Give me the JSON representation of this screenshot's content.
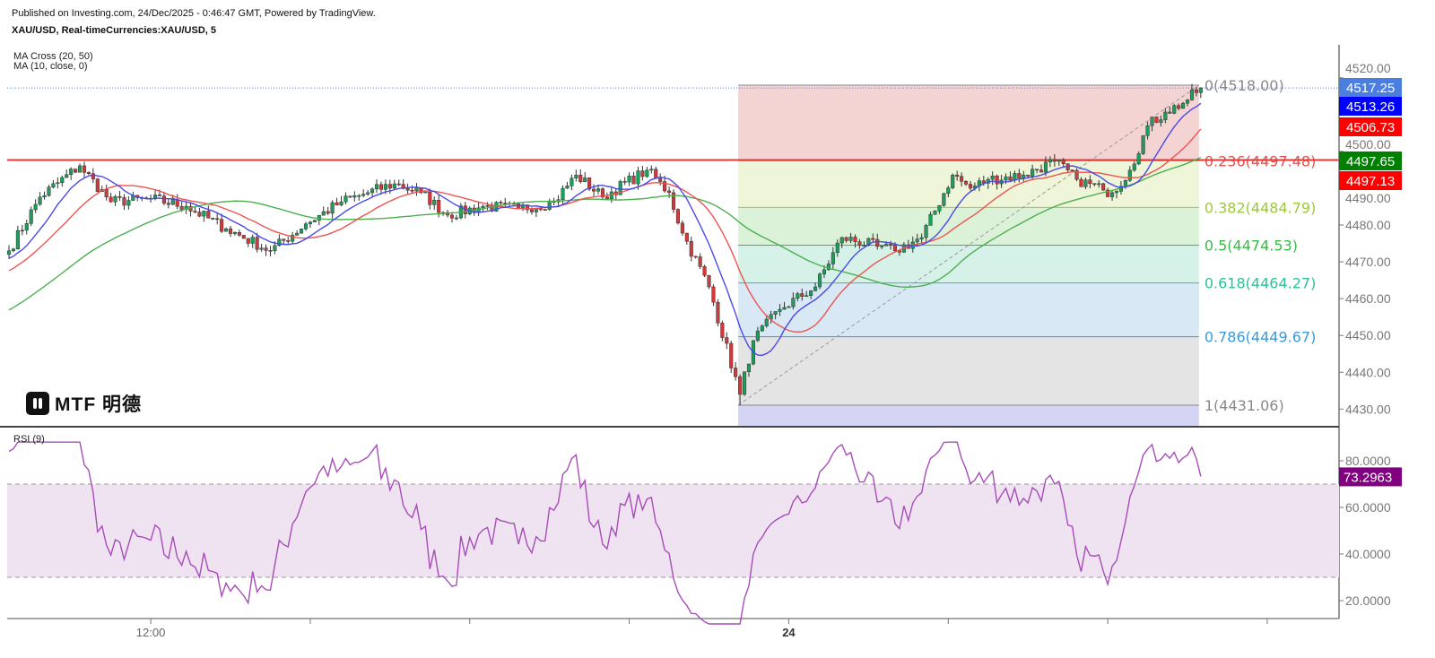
{
  "header": {
    "published": "Published on Investing.com, 24/Dec/2025 - 0:46:47 GMT, Powered by TradingView.",
    "symbol": "XAU/USD, Real-timeCurrencies:XAU/USD, 5"
  },
  "indicators": {
    "ma_cross": "MA Cross (20, 50)",
    "ma": "MA (10, close, 0)",
    "rsi": "RSI (9)"
  },
  "logo": {
    "text": "MTF 明德"
  },
  "colors": {
    "up": "#1e9e5a",
    "down": "#d23a3a",
    "ma10": "#4a4ae8",
    "ma20": "#ef5350",
    "ma50": "#4caf50",
    "rsi": "#a64db8",
    "hline": "#e53935",
    "last_price": "#4a7fe0"
  },
  "price_labels": [
    {
      "text": "4517.25",
      "color": "#4a7fe0",
      "value": 4517.25
    },
    {
      "text": "4513.26",
      "color": "#0000ff",
      "value": 4513.26
    },
    {
      "text": "4506.73",
      "color": "#ff0000",
      "value": 4506.73
    },
    {
      "text": "4497.65",
      "color": "#008000",
      "value": 4497.65
    },
    {
      "text": "4497.13",
      "color": "#ff0000",
      "value": 4497.13
    }
  ],
  "rsi_label": {
    "text": "73.2963",
    "color": "#800080",
    "value": 73.2963
  },
  "chart_data": {
    "type": "candlestick",
    "series": [
      {
        "name": "XAU/USD",
        "kind": "ohlc"
      },
      {
        "name": "MA 10",
        "kind": "line"
      },
      {
        "name": "MA 20",
        "kind": "line"
      },
      {
        "name": "MA 50",
        "kind": "line"
      }
    ],
    "close_waypoints": [
      [
        0,
        4473.0
      ],
      [
        7,
        4487.6
      ],
      [
        16,
        4496.1
      ],
      [
        23,
        4486.3
      ],
      [
        32,
        4487.1
      ],
      [
        40,
        4485.1
      ],
      [
        49,
        4479.0
      ],
      [
        59,
        4473.0
      ],
      [
        67,
        4480.3
      ],
      [
        75,
        4486.3
      ],
      [
        81,
        4488.8
      ],
      [
        87,
        4491.2
      ],
      [
        93,
        4488.8
      ],
      [
        99,
        4482.7
      ],
      [
        107,
        4485.1
      ],
      [
        115,
        4484.4
      ],
      [
        123,
        4486.3
      ],
      [
        128,
        4493.6
      ],
      [
        134,
        4487.6
      ],
      [
        144,
        4494.9
      ],
      [
        149,
        4488.8
      ],
      [
        152,
        4477.8
      ],
      [
        158,
        4463.2
      ],
      [
        165,
        4434.0
      ],
      [
        168,
        4448.6
      ],
      [
        174,
        4457.1
      ],
      [
        182,
        4463.2
      ],
      [
        188,
        4476.6
      ],
      [
        196,
        4474.2
      ],
      [
        200,
        4473.0
      ],
      [
        206,
        4476.6
      ],
      [
        213,
        4493.6
      ],
      [
        217,
        4490.0
      ],
      [
        221,
        4492.4
      ],
      [
        229,
        4493.6
      ],
      [
        236,
        4497.3
      ],
      [
        241,
        4492.4
      ],
      [
        247,
        4489.5
      ],
      [
        249,
        4488.8
      ],
      [
        253,
        4494.9
      ],
      [
        257,
        4507.0
      ],
      [
        261,
        4510.7
      ],
      [
        265,
        4513.1
      ],
      [
        269,
        4517.25
      ]
    ],
    "ylim": [
      4425,
      4525
    ],
    "y_ticks": [
      "4520.00",
      "4500.00",
      "4490.00",
      "4480.00",
      "4470.00",
      "4460.00",
      "4450.00",
      "4440.00",
      "4430.00"
    ],
    "x_ticks": [
      {
        "label": "12:00",
        "bar": 32
      },
      {
        "label": "",
        "bar": 68
      },
      {
        "label": "",
        "bar": 104
      },
      {
        "label": "",
        "bar": 140
      },
      {
        "label": "24",
        "bar": 176,
        "bold": true
      },
      {
        "label": "",
        "bar": 212
      },
      {
        "label": "",
        "bar": 248
      },
      {
        "label": "",
        "bar": 284
      }
    ],
    "horizontal_line": 4497.65,
    "fibonacci": {
      "levels": [
        {
          "label": "0(4518.00)",
          "ratio": 0,
          "price": 4518.0,
          "color": "#888888",
          "fill": "#f4d3d3"
        },
        {
          "label": "0.236(4497.48)",
          "ratio": 0.236,
          "price": 4497.48,
          "color": "#e05252",
          "fill": "#eef5d8"
        },
        {
          "label": "0.382(4484.79)",
          "ratio": 0.382,
          "price": 4484.79,
          "color": "#9cc83c",
          "fill": "#dcf2d8"
        },
        {
          "label": "0.5(4474.53)",
          "ratio": 0.5,
          "price": 4474.53,
          "color": "#3cb84a",
          "fill": "#d6f2e8"
        },
        {
          "label": "0.618(4464.27)",
          "ratio": 0.618,
          "price": 4464.27,
          "color": "#2ec09a",
          "fill": "#d8e9f5"
        },
        {
          "label": "0.786(4449.67)",
          "ratio": 0.786,
          "price": 4449.67,
          "color": "#3b9ad6",
          "fill": "#e4e4e4"
        },
        {
          "label": "1(4431.06)",
          "ratio": 1,
          "price": 4431.06,
          "color": "#888888",
          "fill": "#d4d4f4"
        }
      ],
      "start_bar": 165,
      "end_bar": 269
    },
    "rsi": {
      "period": 9,
      "ylim": [
        8,
        90
      ],
      "y_ticks": [
        "80.0000",
        "60.0000",
        "40.0000",
        "20.0000"
      ],
      "overbought": 70,
      "oversold": 30
    }
  }
}
